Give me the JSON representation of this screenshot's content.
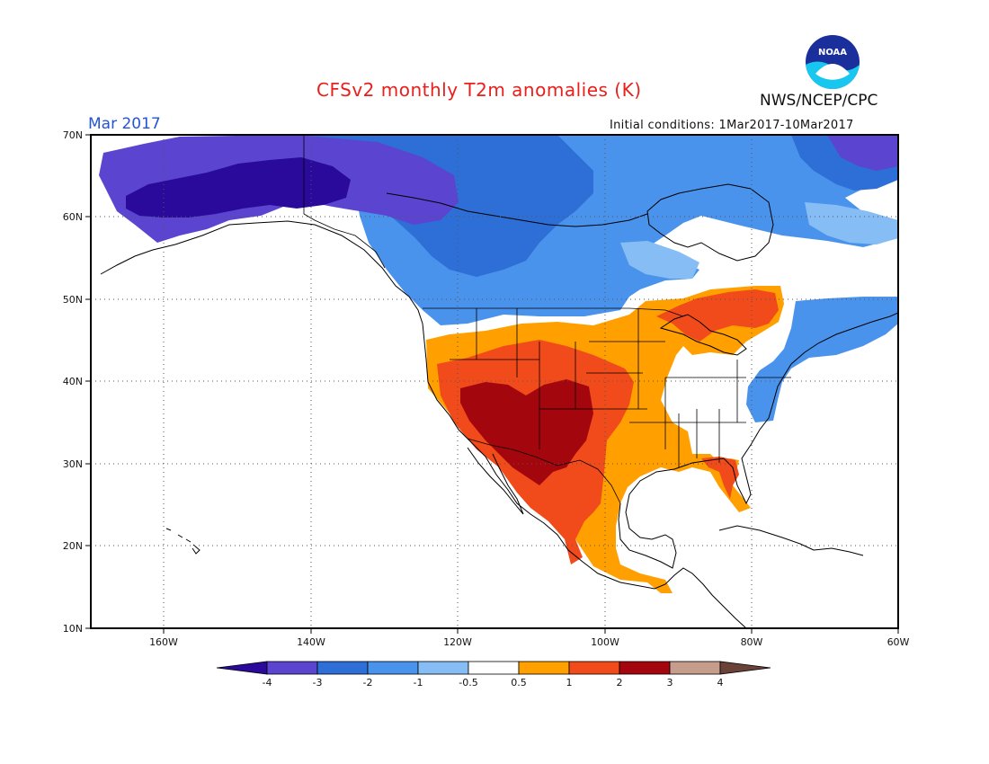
{
  "header": {
    "title": "CFSv2 monthly T2m anomalies (K)",
    "agency": "NWS/NCEP/CPC",
    "valid_month": "Mar 2017",
    "initial_conditions": "Initial conditions: 1Mar2017-10Mar2017",
    "logo_text": "NOAA"
  },
  "map": {
    "lon_range": [
      -170,
      -60
    ],
    "lat_range": [
      10,
      70
    ],
    "lat_labels": [
      "70N",
      "60N",
      "50N",
      "40N",
      "30N",
      "20N",
      "10N"
    ],
    "lon_labels": [
      "160W",
      "140W",
      "120W",
      "100W",
      "80W",
      "60W"
    ],
    "gridlines": "dotted"
  },
  "colorbar": {
    "tick_labels": [
      "-4",
      "-3",
      "-2",
      "-1",
      "-0.5",
      "0.5",
      "1",
      "2",
      "3",
      "4"
    ],
    "colors": [
      "#2a0a9a",
      "#5a44d0",
      "#2d6fd6",
      "#4a93ec",
      "#86bdf5",
      "#ffffff",
      "#ff9f00",
      "#f14a1b",
      "#a3070d",
      "#c69c8c",
      "#6b4237"
    ]
  },
  "anomaly_regions": [
    {
      "level": -4,
      "color": "#2a0a9a",
      "area": "interior Alaska and northern Yukon"
    },
    {
      "level": -3,
      "color": "#5a44d0",
      "area": "Alaska and northwest Canada"
    },
    {
      "level": -2,
      "color": "#2d6fd6",
      "area": "western and central Canada"
    },
    {
      "level": -1,
      "color": "#4a93ec",
      "area": "Pacific Northwest, southern Canada, Quebec, New England"
    },
    {
      "level": 0.5,
      "color": "#ff9f00",
      "area": "Great Plains, Texas, Great Lakes, Mexico"
    },
    {
      "level": 1,
      "color": "#f14a1b",
      "area": "Great Basin, Rockies, Ontario, Florida"
    },
    {
      "level": 2,
      "color": "#a3070d",
      "area": "Desert Southwest, New Mexico, northwest Mexico"
    }
  ]
}
